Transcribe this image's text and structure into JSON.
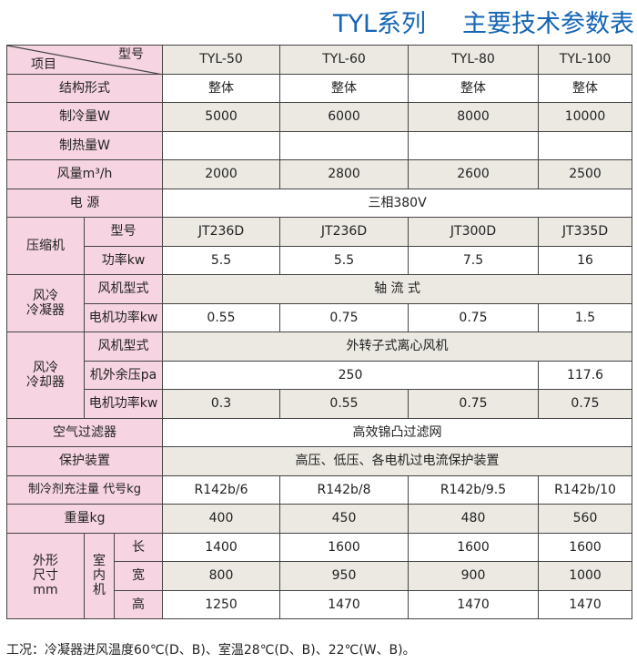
{
  "title": {
    "series": "TYL系列",
    "name": "主要技术参数表"
  },
  "header": {
    "model_label": "型号",
    "item_label": "项目",
    "models": [
      "TYL-50",
      "TYL-60",
      "TYL-80",
      "TYL-100"
    ]
  },
  "rows": {
    "structure": {
      "label": "结构形式",
      "values": [
        "整体",
        "整体",
        "整体",
        "整体"
      ]
    },
    "cooling": {
      "label": "制冷量W",
      "values": [
        "5000",
        "6000",
        "8000",
        "10000"
      ]
    },
    "heating": {
      "label": "制热量W"
    },
    "airflow": {
      "label": "风量m³/h",
      "values": [
        "2000",
        "2800",
        "2600",
        "2500"
      ]
    },
    "power": {
      "label": "电 源",
      "value": "三相380V"
    },
    "compressor": {
      "label": "压缩机",
      "model_label": "型号",
      "models": [
        "JT236D",
        "JT236D",
        "JT300D",
        "JT335D"
      ],
      "power_label": "功率kw",
      "powers": [
        "5.5",
        "5.5",
        "7.5",
        "16"
      ]
    },
    "condenser": {
      "label": "风冷\n冷凝器",
      "fan_type_label": "风机型式",
      "fan_type": "轴 流 式",
      "motor_label": "电机功率kw",
      "motor": [
        "0.55",
        "0.75",
        "0.75",
        "1.5"
      ]
    },
    "cooler": {
      "label": "风冷\n冷却器",
      "fan_type_label": "风机型式",
      "fan_type": "外转子式离心风机",
      "pressure_label": "机外余压pa",
      "pressure": [
        "250",
        "117.6"
      ],
      "motor_label": "电机功率kw",
      "motor": [
        "0.3",
        "0.55",
        "0.75",
        "0.75"
      ]
    },
    "filter": {
      "label": "空气过滤器",
      "value": "高效锦凸过滤网"
    },
    "protection": {
      "label": "保护装置",
      "value": "高压、低压、各电机过电流保护装置"
    },
    "refrigerant": {
      "label": "制冷剂充注量 代号kg",
      "values": [
        "R142b/6",
        "R142b/8",
        "R142b/9.5",
        "R142b/10"
      ]
    },
    "weight": {
      "label": "重量kg",
      "values": [
        "400",
        "450",
        "480",
        "560"
      ]
    },
    "dimensions": {
      "label": "外形\n尺寸\nmm",
      "unit_label": "室\n内\n机",
      "length_label": "长",
      "length": [
        "1400",
        "1600",
        "1600",
        "1600"
      ],
      "width_label": "宽",
      "width": [
        "800",
        "950",
        "900",
        "1000"
      ],
      "height_label": "高",
      "height": [
        "1250",
        "1470",
        "1470",
        "1470"
      ]
    }
  },
  "note": "工况：冷凝器进风温度60℃(D、B)、室温28℃(D、B)、22℃(W、B)。"
}
